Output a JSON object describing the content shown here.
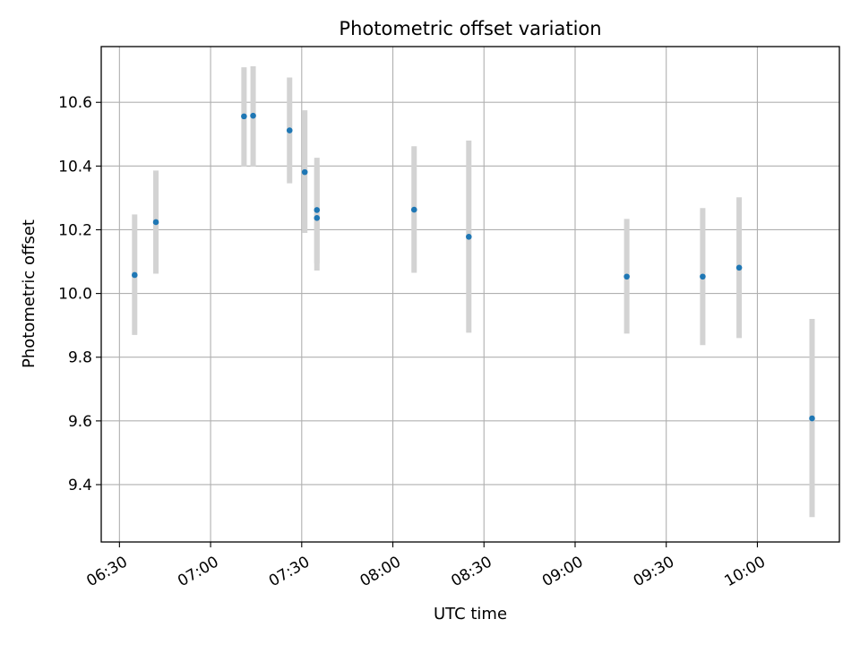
{
  "chart_data": {
    "type": "scatter",
    "title": "Photometric offset variation",
    "xlabel": "UTC time",
    "ylabel": "Photometric offset",
    "xlim": [
      "06:24",
      "10:27"
    ],
    "ylim": [
      9.22,
      10.775
    ],
    "x_ticks": [
      "06:30",
      "07:00",
      "07:30",
      "08:00",
      "08:30",
      "09:00",
      "09:30",
      "10:00"
    ],
    "y_ticks": [
      "9.4",
      "9.6",
      "9.8",
      "10.0",
      "10.2",
      "10.4",
      "10.6"
    ],
    "grid": true,
    "legend": "none",
    "colors": {
      "points": "#1f77b4",
      "errorbars": "#d3d3d3",
      "grid": "#b0b0b0"
    },
    "series": [
      {
        "points": [
          {
            "x": "06:35",
            "y": 10.058,
            "err_low": 9.87,
            "err_high": 10.248
          },
          {
            "x": "06:42",
            "y": 10.224,
            "err_low": 10.062,
            "err_high": 10.386
          },
          {
            "x": "07:11",
            "y": 10.556,
            "err_low": 10.398,
            "err_high": 10.71
          },
          {
            "x": "07:14",
            "y": 10.558,
            "err_low": 10.398,
            "err_high": 10.713
          },
          {
            "x": "07:26",
            "y": 10.512,
            "err_low": 10.346,
            "err_high": 10.678
          },
          {
            "x": "07:31",
            "y": 10.381,
            "err_low": 10.19,
            "err_high": 10.575
          },
          {
            "x": "07:35",
            "y": 10.262,
            "err_low": 10.094,
            "err_high": 10.426
          },
          {
            "x": "07:35",
            "y": 10.237,
            "err_low": 10.072,
            "err_high": 10.402
          },
          {
            "x": "08:07",
            "y": 10.263,
            "err_low": 10.065,
            "err_high": 10.462
          },
          {
            "x": "08:25",
            "y": 10.178,
            "err_low": 9.877,
            "err_high": 10.48
          },
          {
            "x": "09:17",
            "y": 10.053,
            "err_low": 9.874,
            "err_high": 10.234
          },
          {
            "x": "09:42",
            "y": 10.053,
            "err_low": 9.838,
            "err_high": 10.268
          },
          {
            "x": "09:54",
            "y": 10.081,
            "err_low": 9.86,
            "err_high": 10.302
          },
          {
            "x": "10:18",
            "y": 9.608,
            "err_low": 9.298,
            "err_high": 9.92
          }
        ]
      }
    ]
  }
}
